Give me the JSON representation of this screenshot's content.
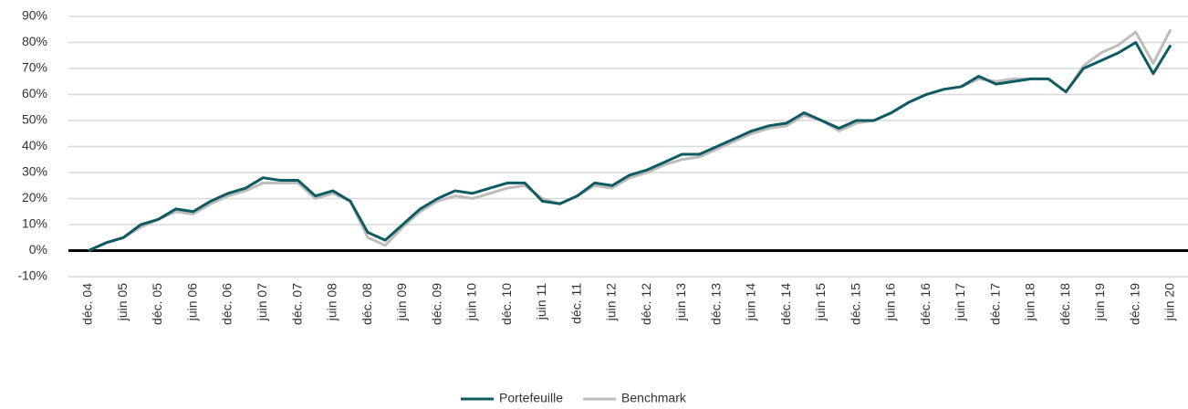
{
  "chart_data": {
    "type": "line",
    "categories": [
      "déc. 04",
      null,
      "juin 05",
      null,
      "déc. 05",
      null,
      "juin 06",
      null,
      "déc. 06",
      null,
      "juin 07",
      null,
      "déc. 07",
      null,
      "juin 08",
      null,
      "déc. 08",
      null,
      "juin 09",
      null,
      "déc. 09",
      null,
      "juin 10",
      null,
      "déc. 10",
      null,
      "juin 11",
      null,
      "déc. 11",
      null,
      "juin 12",
      null,
      "déc. 12",
      null,
      "juin 13",
      null,
      "déc. 13",
      null,
      "juin 14",
      null,
      "déc. 14",
      null,
      "juin 15",
      null,
      "déc. 15",
      null,
      "juin 16",
      null,
      "déc. 16",
      null,
      "juin 17",
      null,
      "déc. 17",
      null,
      "juin 18",
      null,
      "déc. 18",
      null,
      "juin 19",
      null,
      "déc. 19",
      null,
      "juin 20"
    ],
    "series": [
      {
        "name": "Portefeuille",
        "color": "#0f5a63",
        "values": [
          0,
          3,
          5,
          10,
          12,
          16,
          15,
          19,
          22,
          24,
          28,
          27,
          27,
          21,
          23,
          19,
          7,
          4,
          10,
          16,
          20,
          23,
          22,
          24,
          26,
          26,
          19,
          18,
          21,
          26,
          25,
          29,
          31,
          34,
          37,
          37,
          40,
          43,
          46,
          48,
          49,
          53,
          50,
          47,
          50,
          50,
          53,
          57,
          60,
          62,
          63,
          67,
          64,
          65,
          66,
          66,
          61,
          70,
          73,
          76,
          80,
          68,
          79
        ]
      },
      {
        "name": "Benchmark",
        "color": "#bdbdbd",
        "values": [
          0,
          3,
          5,
          9,
          12,
          15,
          14,
          18,
          21,
          23,
          26,
          26,
          26,
          20,
          22,
          19,
          5,
          2,
          9,
          15,
          19,
          21,
          20,
          22,
          24,
          25,
          20,
          18,
          21,
          25,
          24,
          28,
          30,
          33,
          35,
          36,
          39,
          42,
          45,
          47,
          48,
          52,
          50,
          46,
          49,
          50,
          53,
          57,
          60,
          62,
          63,
          66,
          65,
          66,
          66,
          66,
          61,
          71,
          76,
          79,
          84,
          72,
          85
        ]
      }
    ],
    "ylim": [
      -10,
      90
    ],
    "yticks": [
      {
        "value": -10,
        "label": "-10%"
      },
      {
        "value": 0,
        "label": "0%"
      },
      {
        "value": 10,
        "label": "10%"
      },
      {
        "value": 20,
        "label": "20%"
      },
      {
        "value": 30,
        "label": "30%"
      },
      {
        "value": 40,
        "label": "40%"
      },
      {
        "value": 50,
        "label": "50%"
      },
      {
        "value": 60,
        "label": "60%"
      },
      {
        "value": 70,
        "label": "70%"
      },
      {
        "value": 80,
        "label": "80%"
      },
      {
        "value": 90,
        "label": "90%"
      }
    ],
    "grid": true
  }
}
